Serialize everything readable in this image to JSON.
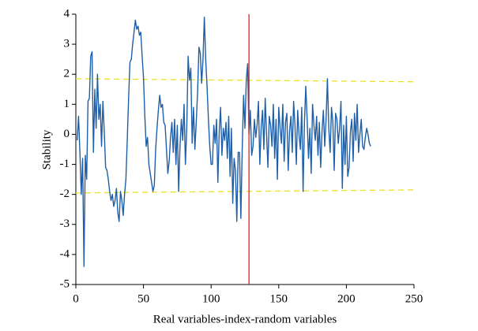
{
  "chart_data": {
    "type": "line",
    "xlabel": "Real variables-index-random variables",
    "ylabel": "Stability",
    "xlim": [
      0,
      250
    ],
    "xticks": [
      0,
      50,
      100,
      150,
      200,
      250
    ],
    "ylim": [
      -5,
      4
    ],
    "yticks": [
      -5,
      -4,
      -3,
      -2,
      -1,
      0,
      1,
      2,
      3,
      4
    ],
    "x": [
      1,
      2,
      3,
      4,
      5,
      6,
      7,
      8,
      9,
      10,
      11,
      12,
      13,
      14,
      15,
      16,
      17,
      18,
      19,
      20,
      21,
      22,
      23,
      24,
      25,
      26,
      27,
      28,
      29,
      30,
      31,
      32,
      33,
      34,
      35,
      36,
      37,
      38,
      39,
      40,
      41,
      42,
      43,
      44,
      45,
      46,
      47,
      48,
      49,
      50,
      51,
      52,
      53,
      54,
      55,
      56,
      57,
      58,
      59,
      60,
      61,
      62,
      63,
      64,
      65,
      66,
      67,
      68,
      69,
      70,
      71,
      72,
      73,
      74,
      75,
      76,
      77,
      78,
      79,
      80,
      81,
      82,
      83,
      84,
      85,
      86,
      87,
      88,
      89,
      90,
      91,
      92,
      93,
      94,
      95,
      96,
      97,
      98,
      99,
      100,
      101,
      102,
      103,
      104,
      105,
      106,
      107,
      108,
      109,
      110,
      111,
      112,
      113,
      114,
      115,
      116,
      117,
      118,
      119,
      120,
      121,
      122,
      123,
      124,
      125,
      126,
      127,
      128,
      129,
      130,
      131,
      132,
      133,
      134,
      135,
      136,
      137,
      138,
      139,
      140,
      141,
      142,
      143,
      144,
      145,
      146,
      147,
      148,
      149,
      150,
      151,
      152,
      153,
      154,
      155,
      156,
      157,
      158,
      159,
      160,
      161,
      162,
      163,
      164,
      165,
      166,
      167,
      168,
      169,
      170,
      171,
      172,
      173,
      174,
      175,
      176,
      177,
      178,
      179,
      180,
      181,
      182,
      183,
      184,
      185,
      186,
      187,
      188,
      189,
      190,
      191,
      192,
      193,
      194,
      195,
      196,
      197,
      198,
      199,
      200,
      201,
      202,
      203,
      204,
      205,
      206,
      207,
      208,
      209,
      210,
      211,
      212,
      213,
      214,
      215,
      216,
      217,
      218
    ],
    "series": [
      {
        "color": "#1f5fa8",
        "values": [
          -0.2,
          0.6,
          -0.6,
          -2.0,
          -0.8,
          -4.4,
          -0.7,
          -1.5,
          1.1,
          1.2,
          2.6,
          2.75,
          -0.6,
          1.5,
          0.2,
          2.0,
          0.5,
          1.0,
          -0.4,
          1.1,
          0.1,
          -1.1,
          -1.2,
          -1.5,
          -1.9,
          -2.2,
          -2.0,
          -2.4,
          -2.2,
          -1.8,
          -2.6,
          -2.9,
          -1.9,
          -2.2,
          -2.7,
          -2.0,
          -1.5,
          -0.2,
          1.2,
          2.4,
          2.5,
          3.0,
          3.4,
          3.8,
          3.5,
          3.6,
          3.3,
          3.4,
          2.6,
          1.9,
          0.6,
          -0.4,
          -0.1,
          -1.0,
          -1.3,
          -1.6,
          -1.9,
          -1.7,
          -0.5,
          0.2,
          0.8,
          1.3,
          0.9,
          1.0,
          0.4,
          0.3,
          -0.5,
          -1.3,
          -0.9,
          -0.1,
          0.4,
          -0.6,
          0.5,
          -1.0,
          0.3,
          -1.9,
          -0.4,
          0.5,
          -0.2,
          1.0,
          -1.0,
          0.2,
          2.6,
          1.8,
          2.2,
          -0.3,
          0.9,
          -0.5,
          0.4,
          1.4,
          2.9,
          2.7,
          1.7,
          2.5,
          3.9,
          2.5,
          1.6,
          0.5,
          -0.4,
          -1.0,
          -1.0,
          0.3,
          -0.3,
          0.5,
          -1.6,
          0.1,
          0.9,
          -0.7,
          0.2,
          -0.2,
          0.4,
          -0.8,
          0.6,
          -1.4,
          0.2,
          -2.3,
          -0.8,
          -1.2,
          -2.9,
          -0.6,
          -0.6,
          -2.8,
          -0.5,
          1.3,
          0.2,
          1.8,
          2.35,
          0.0,
          0.8,
          -0.7,
          -0.4,
          0.5,
          -0.1,
          0.3,
          1.1,
          -1.0,
          0.2,
          0.8,
          -0.5,
          1.2,
          0.0,
          -1.1,
          0.6,
          0.3,
          -0.4,
          1.0,
          -0.8,
          0.5,
          -1.5,
          0.9,
          0.2,
          -0.3,
          1.0,
          -0.9,
          0.4,
          0.7,
          -1.2,
          0.1,
          0.6,
          -0.6,
          1.1,
          0.3,
          -1.0,
          0.8,
          0.0,
          -0.5,
          0.9,
          -1.9,
          0.4,
          1.6,
          0.5,
          -0.8,
          0.2,
          -1.3,
          1.0,
          0.3,
          -0.2,
          0.6,
          -0.7,
          0.4,
          -1.1,
          0.1,
          0.8,
          -0.4,
          0.5,
          1.85,
          0.2,
          -0.6,
          0.9,
          0.4,
          -1.2,
          0.7,
          0.5,
          -0.3,
          0.2,
          1.1,
          -1.8,
          0.3,
          -1.0,
          0.6,
          -1.4,
          -1.1,
          0.1,
          0.5,
          -0.9,
          0.7,
          -0.2,
          1.0,
          -0.6,
          0.0,
          0.5,
          -0.4,
          -0.5,
          -0.1,
          0.2,
          0.0,
          -0.3,
          -0.4
        ]
      }
    ],
    "trend_lines": [
      {
        "color": "#e8e030",
        "x": [
          0,
          250
        ],
        "values": [
          1.85,
          1.75
        ]
      },
      {
        "color": "#e8e030",
        "x": [
          0,
          250
        ],
        "values": [
          -1.95,
          -1.85
        ]
      }
    ],
    "vline": {
      "color": "#e02020",
      "x": 128
    }
  }
}
